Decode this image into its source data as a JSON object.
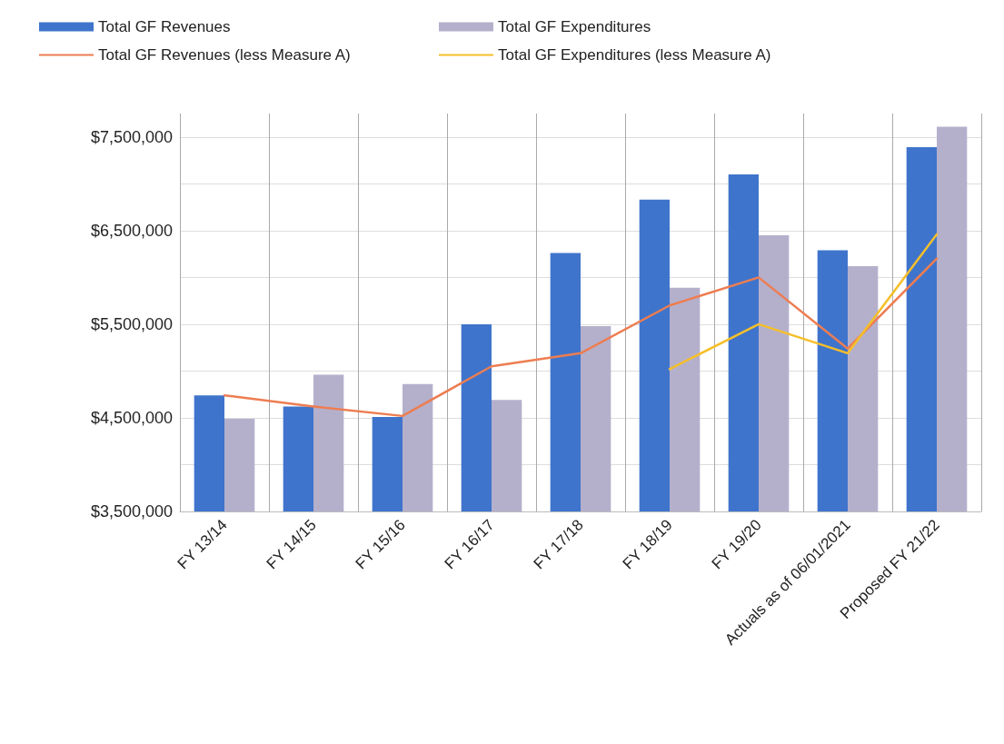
{
  "chart_data": {
    "type": "bar",
    "categories": [
      "FY 13/14",
      "FY 14/15",
      "FY 15/16",
      "FY 16/17",
      "FY 17/18",
      "FY 18/19",
      "FY 19/20",
      "Actuals as of 06/01/2021",
      "Proposed FY 21/22"
    ],
    "series": [
      {
        "name": "Total GF Revenues",
        "color": "#3f74cc",
        "values": [
          4740000,
          4620000,
          4510000,
          5500000,
          6260000,
          6830000,
          7100000,
          6290000,
          7390000
        ]
      },
      {
        "name": "Total GF Expenditures",
        "color": "#b4b0cc",
        "values": [
          4490000,
          4960000,
          4860000,
          4690000,
          5480000,
          5890000,
          6450000,
          6120000,
          7610000
        ]
      },
      {
        "name": "Total GF Revenues (less Measure A)",
        "type": "line",
        "color": "#ed7d51",
        "values": [
          4740000,
          4620000,
          4520000,
          5050000,
          5190000,
          5700000,
          6000000,
          5240000,
          6200000
        ]
      },
      {
        "name": "Total GF Expenditures (less Measure A)",
        "type": "line",
        "color": "#f5bf2a",
        "values": [
          null,
          null,
          null,
          null,
          null,
          5020000,
          5500000,
          5190000,
          6460000
        ]
      }
    ],
    "ylim": [
      3500000,
      7750000
    ],
    "yticks": [
      {
        "value": 3500000,
        "label": "$3,500,000"
      },
      {
        "value": 4000000,
        "label": null
      },
      {
        "value": 4500000,
        "label": "$4,500,000"
      },
      {
        "value": 5000000,
        "label": null
      },
      {
        "value": 5500000,
        "label": "$5,500,000"
      },
      {
        "value": 6000000,
        "label": null
      },
      {
        "value": 6500000,
        "label": "$6,500,000"
      },
      {
        "value": 7000000,
        "label": null
      },
      {
        "value": 7500000,
        "label": "$7,500,000"
      }
    ],
    "grid": true,
    "legend": "top",
    "marker": "none",
    "line_style": "solid"
  }
}
